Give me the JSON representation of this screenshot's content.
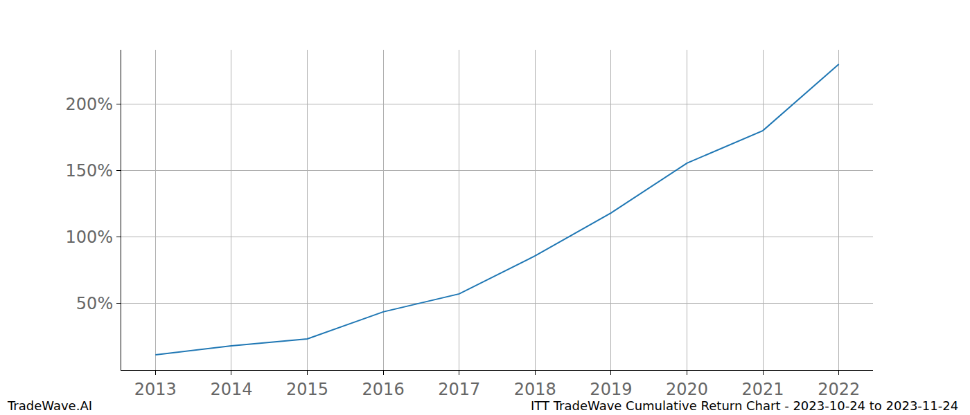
{
  "chart_data": {
    "type": "line",
    "x": [
      2013,
      2014,
      2015,
      2016,
      2017,
      2018,
      2019,
      2020,
      2021,
      2022
    ],
    "values": [
      11.5,
      18.2,
      23.4,
      43.8,
      57.3,
      85.9,
      118.2,
      155.7,
      180.2,
      230.2
    ],
    "color": "#1f77b4",
    "xlim": [
      2012.55,
      2022.45
    ],
    "xticks": [
      2013,
      2014,
      2015,
      2016,
      2017,
      2018,
      2019,
      2020,
      2021,
      2022
    ],
    "ylim": [
      0,
      241
    ],
    "yticks": [
      {
        "value": 50,
        "label": "50%"
      },
      {
        "value": 100,
        "label": "100%"
      },
      {
        "value": 150,
        "label": "150%"
      },
      {
        "value": 200,
        "label": "200%"
      }
    ],
    "grid": true,
    "annotations": [
      "TradeWave.AI",
      "ITT TradeWave Cumulative Return Chart - 2023-10-24 to 2023-11-24"
    ]
  }
}
